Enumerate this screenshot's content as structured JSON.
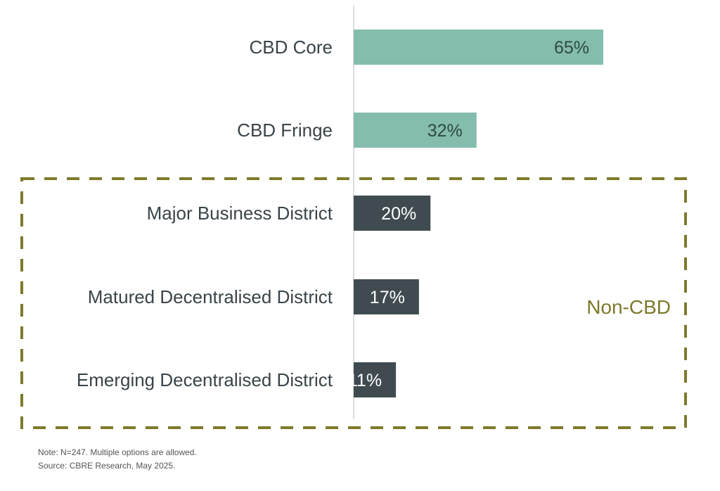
{
  "chart_data": {
    "type": "bar",
    "orientation": "horizontal",
    "title": "",
    "xlabel": "",
    "ylabel": "",
    "xlim": [
      0,
      65
    ],
    "grid": false,
    "categories": [
      "CBD Core",
      "CBD Fringe",
      "Major Business District",
      "Matured Decentralised District",
      "Emerging Decentralised District"
    ],
    "values": [
      65,
      32,
      20,
      17,
      11
    ],
    "data_labels": [
      "65%",
      "32%",
      "20%",
      "17%",
      "11%"
    ],
    "groups": [
      {
        "name": "CBD",
        "categories": [
          "CBD Core",
          "CBD Fringe"
        ],
        "color": "#84bcad"
      },
      {
        "name": "Non-CBD",
        "categories": [
          "Major Business District",
          "Matured Decentralised District",
          "Emerging Decentralised District"
        ],
        "color": "#3f4b50"
      }
    ],
    "annotations": [
      {
        "text": "Non-CBD",
        "type": "dashed-box",
        "color": "#7d7a2b"
      }
    ]
  },
  "footnotes": {
    "note": "Note: N=247. Multiple options are allowed.",
    "source": "Source: CBRE Research, May 2025."
  }
}
